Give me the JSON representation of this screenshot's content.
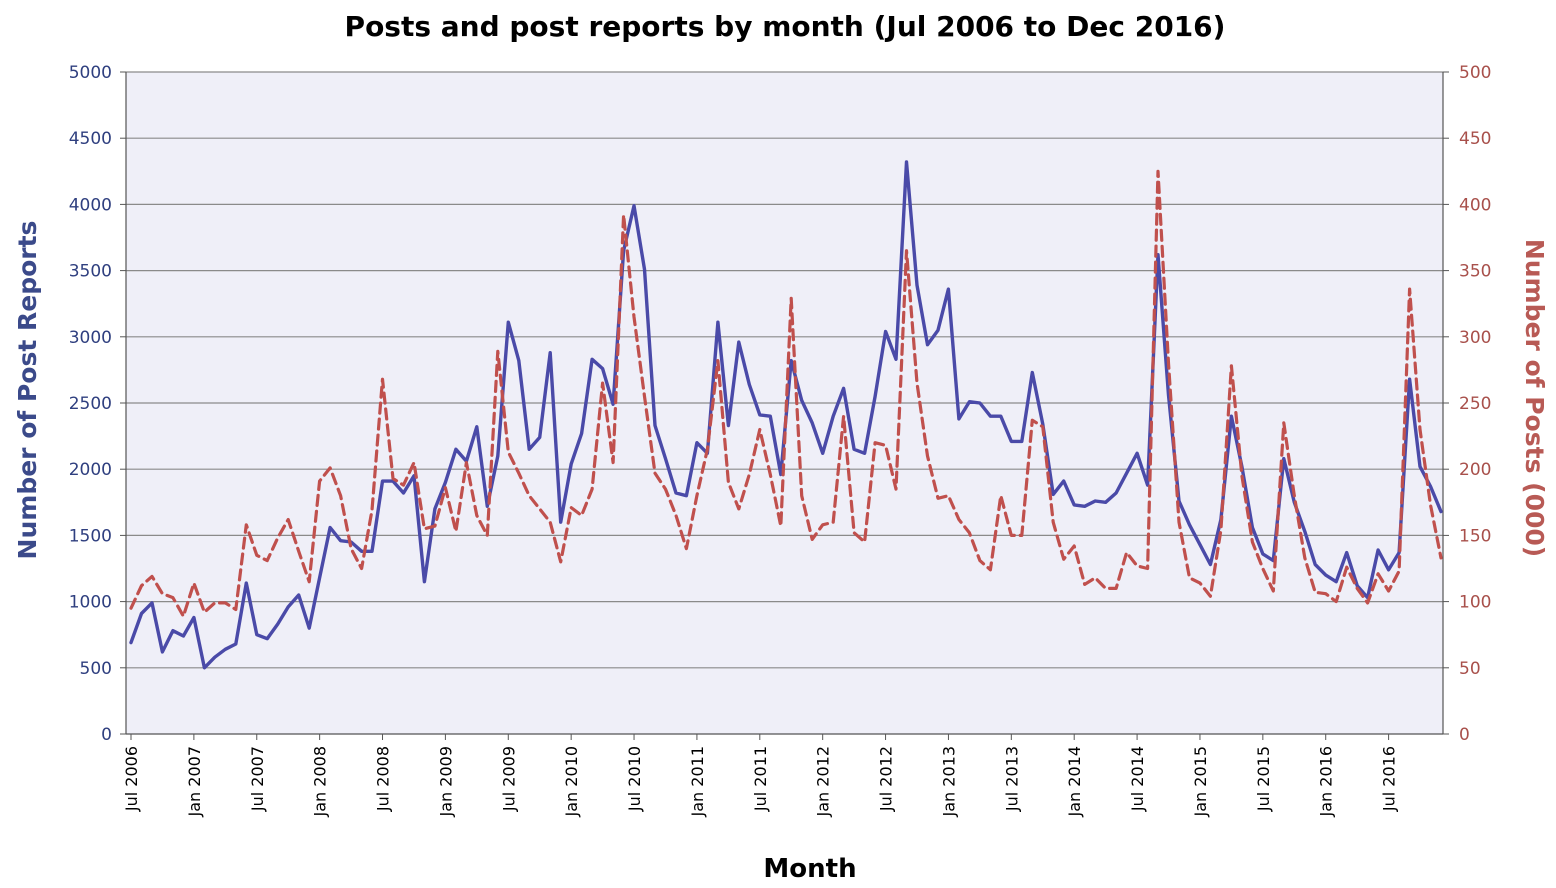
{
  "chart_data": {
    "type": "line",
    "title": "Posts and post reports by month (Jul 2006 to Dec 2016)",
    "xlabel": "Month",
    "ylabel_left": "Number of Post Reports",
    "ylabel_right": "Number of Posts (000)",
    "y_left_range": [
      0,
      5000
    ],
    "y_right_range": [
      0,
      500
    ],
    "y_left_ticks": [
      "0",
      "500",
      "1000",
      "1500",
      "2000",
      "2500",
      "3000",
      "3500",
      "4000",
      "4500",
      "5000"
    ],
    "y_right_ticks": [
      "0",
      "50",
      "100",
      "150",
      "200",
      "250",
      "300",
      "350",
      "400",
      "450",
      "500"
    ],
    "x_tick_labels": [
      "Jul 2006",
      "Jan 2007",
      "Jul 2007",
      "Jan 2008",
      "Jul 2008",
      "Jan 2009",
      "Jul 2009",
      "Jan 2010",
      "Jul 2010",
      "Jan 2011",
      "Jul 2011",
      "Jan 2012",
      "Jul 2012",
      "Jan 2013",
      "Jul 2013",
      "Jan 2014",
      "Jul 2014",
      "Jan 2015",
      "Jul 2015",
      "Jan 2016",
      "Jul 2016"
    ],
    "grid": true,
    "colors": {
      "reports": "#4a4aa8",
      "posts": "#c0504d",
      "plot_bg": "#efeff8",
      "grid": "#8a8a8a",
      "left_axis_text": "#2f3f7f",
      "right_axis_text": "#a8504b"
    },
    "series": [
      {
        "axis": "left",
        "style": "solid",
        "values": [
          690,
          910,
          990,
          620,
          780,
          740,
          880,
          500,
          580,
          640,
          680,
          1140,
          750,
          720,
          830,
          960,
          1050,
          800,
          1180,
          1560,
          1460,
          1450,
          1380,
          1380,
          1910,
          1910,
          1820,
          1950,
          1150,
          1700,
          1900,
          2150,
          2060,
          2320,
          1720,
          2100,
          3110,
          2820,
          2150,
          2240,
          2880,
          1600,
          2040,
          2270,
          2830,
          2760,
          2490,
          3650,
          3990,
          3510,
          2330,
          2080,
          1820,
          1800,
          2200,
          2120,
          3110,
          2330,
          2960,
          2640,
          2410,
          2400,
          1960,
          2820,
          2520,
          2350,
          2120,
          2400,
          2610,
          2150,
          2120,
          2550,
          3040,
          2830,
          4320,
          3390,
          2940,
          3050,
          3360,
          2380,
          2510,
          2500,
          2400,
          2400,
          2210,
          2210,
          2730,
          2340,
          1810,
          1910,
          1730,
          1720,
          1760,
          1750,
          1820,
          1970,
          2120,
          1880,
          3620,
          2560,
          1760,
          1580,
          1430,
          1280,
          1620,
          2400,
          2020,
          1560,
          1360,
          1310,
          2080,
          1750,
          1530,
          1280,
          1200,
          1150,
          1370,
          1120,
          1030,
          1390,
          1240,
          1370,
          2680,
          2020,
          1870,
          1680
        ]
      },
      {
        "axis": "right",
        "style": "dashed",
        "values": [
          95,
          112,
          119,
          106,
          103,
          89,
          114,
          92,
          99,
          99,
          94,
          158,
          135,
          131,
          148,
          162,
          138,
          115,
          191,
          201,
          180,
          140,
          125,
          169,
          268,
          193,
          188,
          205,
          155,
          157,
          186,
          153,
          205,
          165,
          150,
          289,
          213,
          197,
          180,
          170,
          160,
          130,
          171,
          165,
          185,
          265,
          205,
          392,
          315,
          255,
          197,
          185,
          165,
          140,
          180,
          215,
          282,
          190,
          170,
          196,
          230,
          196,
          157,
          329,
          180,
          147,
          158,
          160,
          240,
          152,
          145,
          220,
          218,
          185,
          365,
          265,
          210,
          178,
          180,
          162,
          152,
          131,
          124,
          180,
          150,
          150,
          237,
          232,
          160,
          132,
          142,
          113,
          118,
          110,
          110,
          137,
          127,
          125,
          425,
          280,
          160,
          118,
          114,
          104,
          154,
          278,
          195,
          145,
          125,
          108,
          235,
          180,
          133,
          107,
          106,
          100,
          126,
          110,
          99,
          121,
          108,
          123,
          336,
          230,
          173,
          133
        ]
      }
    ]
  }
}
